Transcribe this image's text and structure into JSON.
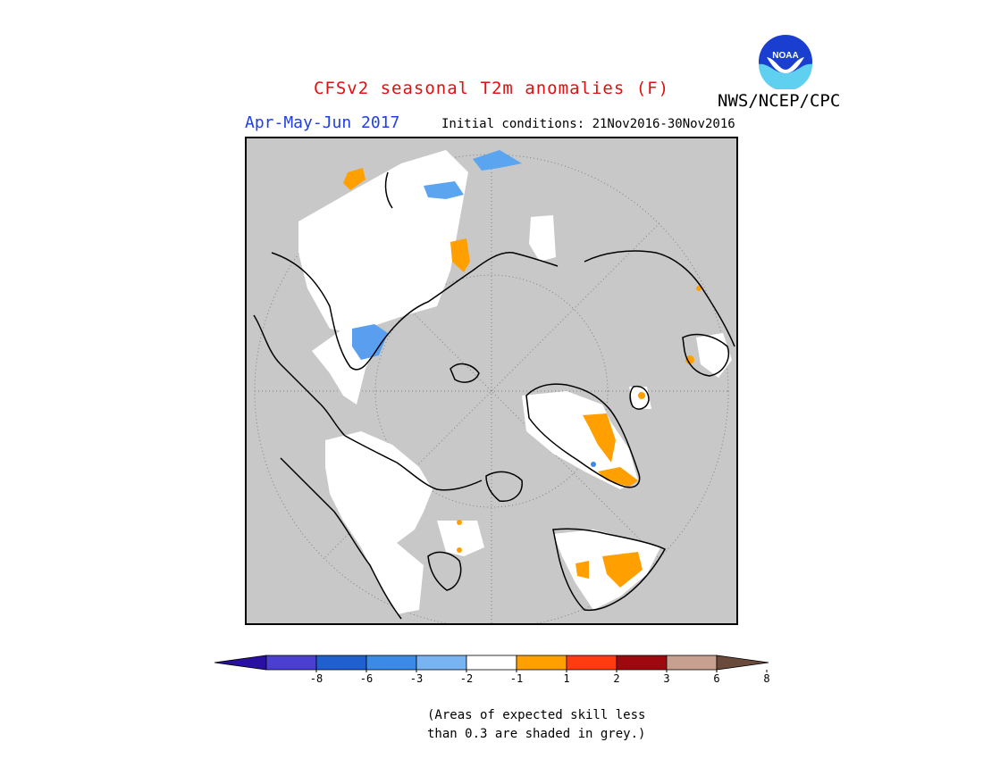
{
  "title": "CFSv2 seasonal T2m anomalies (F)",
  "period": "Apr-May-Jun 2017",
  "initial_conditions": "Initial conditions: 21Nov2016-30Nov2016",
  "agency": "NWS/NCEP/CPC",
  "logo_text": "NOAA",
  "note": [
    "(Areas of expected skill less",
    "than 0.3 are shaded in grey.)"
  ],
  "colors": {
    "title": "#e01010",
    "period": "#2040e0",
    "grey_mask": "#c8c8c8",
    "coast": "#000000",
    "graticule": "#808080"
  },
  "legend": {
    "tick_labels": [
      "-8",
      "-6",
      "-3",
      "-2",
      "-1",
      "1",
      "2",
      "3",
      "6",
      "8"
    ],
    "bins": [
      {
        "color": "#2a10a0"
      },
      {
        "color": "#4a3fd0"
      },
      {
        "color": "#1f5fd0"
      },
      {
        "color": "#3c8ae8"
      },
      {
        "color": "#79b4f2"
      },
      {
        "color": "#ffffff"
      },
      {
        "color": "#ffa000"
      },
      {
        "color": "#ff3c10"
      },
      {
        "color": "#a00810"
      },
      {
        "color": "#c8a090"
      },
      {
        "color": "#6a4a3a"
      }
    ]
  }
}
